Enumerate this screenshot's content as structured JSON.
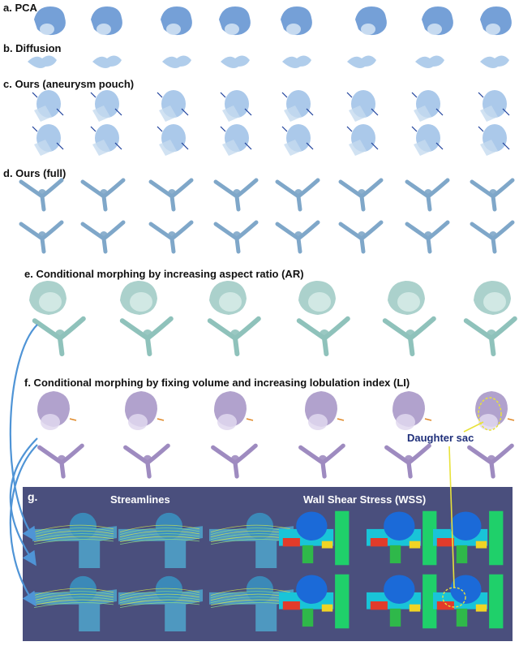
{
  "labels": {
    "a": "a. PCA",
    "b": "b. Diffusion",
    "c": "c. Ours (aneurysm pouch)",
    "d": "d. Ours (full)",
    "e": "e. Conditional morphing by increasing aspect ratio (AR)",
    "f": "f. Conditional morphing by fixing volume and increasing lobulation index (LI)",
    "g": "g."
  },
  "panel_g": {
    "streamlines_title": "Streamlines",
    "wss_title": "Wall Shear Stress (WSS)"
  },
  "annotation": "Daughter sac",
  "colors": {
    "pca_blue": "#5d8fd0",
    "pouch_blue": "#9cc0e6",
    "vessel_blue": "#7fa7c9",
    "teal": "#8fc2bb",
    "purple": "#9e8bc0",
    "panel_bg": "#4a4f7d",
    "arrow": "#4f94d6",
    "annotation_yellow": "#e8e23a"
  }
}
